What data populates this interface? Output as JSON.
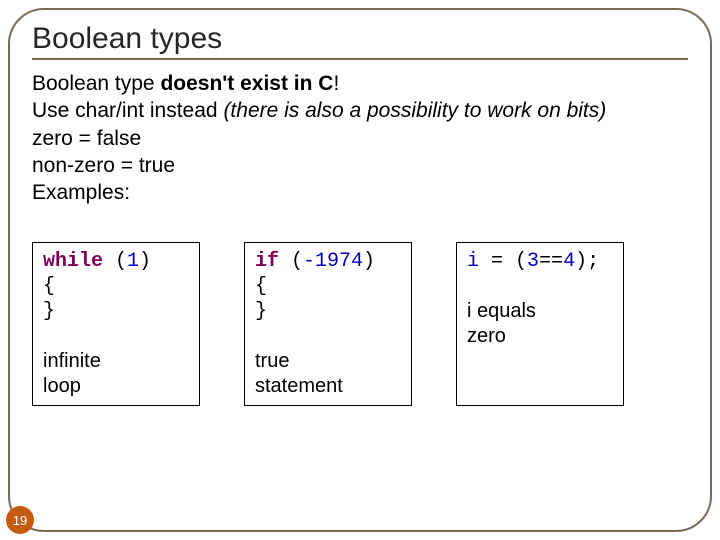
{
  "title": "Boolean types",
  "body": {
    "line1_prefix": "Boolean type ",
    "line1_bold": "doesn't exist in C",
    "line1_suffix": "!",
    "line2_a": "Use char/int instead ",
    "line2_b_italic": "(there is also a possibility to work on bits)",
    "line3": "zero = false",
    "line4": "non-zero = true",
    "line5": "Examples:"
  },
  "examples": {
    "box1": {
      "code_kw": "while",
      "code_paren_open": " (",
      "code_num": "1",
      "code_paren_close": ")",
      "brace_open": "{",
      "brace_close": "}",
      "caption_l1": "infinite",
      "caption_l2": "loop"
    },
    "box2": {
      "code_kw": "if",
      "code_paren_open": " (",
      "code_num": "-1974",
      "code_paren_close": ")",
      "brace_open": "{",
      "brace_close": "}",
      "caption_l1": "true",
      "caption_l2": "statement"
    },
    "box3": {
      "code_var": "i",
      "code_mid": " = (",
      "code_num1": "3",
      "code_eqeq": "==",
      "code_num2": "4",
      "code_end": ");",
      "spacer": " ",
      "caption_l1": "i equals",
      "caption_l2": "zero"
    }
  },
  "page_number": "19",
  "colors": {
    "frame_border": "#7c6a54",
    "badge_bg": "#c55a11",
    "keyword": "#7f0055",
    "number": "#0000c0"
  }
}
